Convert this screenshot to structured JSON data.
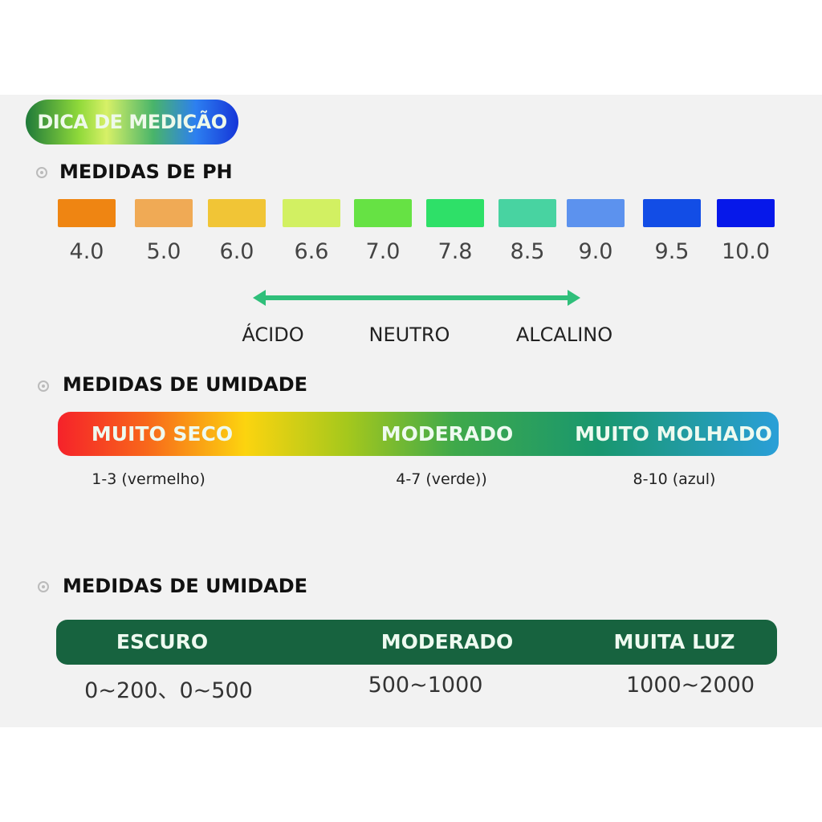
{
  "badge": {
    "label": "DICA DE MEDIÇÃO"
  },
  "ph": {
    "title": "MEDIDAS DE PH",
    "swatches": [
      {
        "value": "4.0",
        "color": "#ef8512"
      },
      {
        "value": "5.0",
        "color": "#f0aa55"
      },
      {
        "value": "6.0",
        "color": "#f1c536"
      },
      {
        "value": "6.6",
        "color": "#d2f062"
      },
      {
        "value": "7.0",
        "color": "#66e244"
      },
      {
        "value": "7.8",
        "color": "#2ee068"
      },
      {
        "value": "8.5",
        "color": "#48d3a1"
      },
      {
        "value": "9.0",
        "color": "#5c92ee"
      },
      {
        "value": "9.5",
        "color": "#124de6"
      },
      {
        "value": "10.0",
        "color": "#0618ea"
      }
    ],
    "scale": {
      "acid": "ÁCIDO",
      "neutral": "NEUTRO",
      "alkaline": "ALCALINO",
      "arrow_color": "#2fbf7a"
    }
  },
  "humidity": {
    "title": "MEDIDAS DE UMIDADE",
    "segments": [
      {
        "label": "MUITO SECO",
        "range": "1-3 (vermelho)"
      },
      {
        "label": "MODERADO",
        "range": "4-7 (verde))"
      },
      {
        "label": "MUITO MOLHADO",
        "range": "8-10 (azul)"
      }
    ]
  },
  "light": {
    "title": "MEDIDAS DE UMIDADE",
    "bar_color": "#17633f",
    "segments": [
      {
        "label": "ESCURO",
        "range": "0~200、0~500"
      },
      {
        "label": "MODERADO",
        "range": "500~1000"
      },
      {
        "label": "MUITA LUZ",
        "range": "1000~2000"
      }
    ]
  }
}
